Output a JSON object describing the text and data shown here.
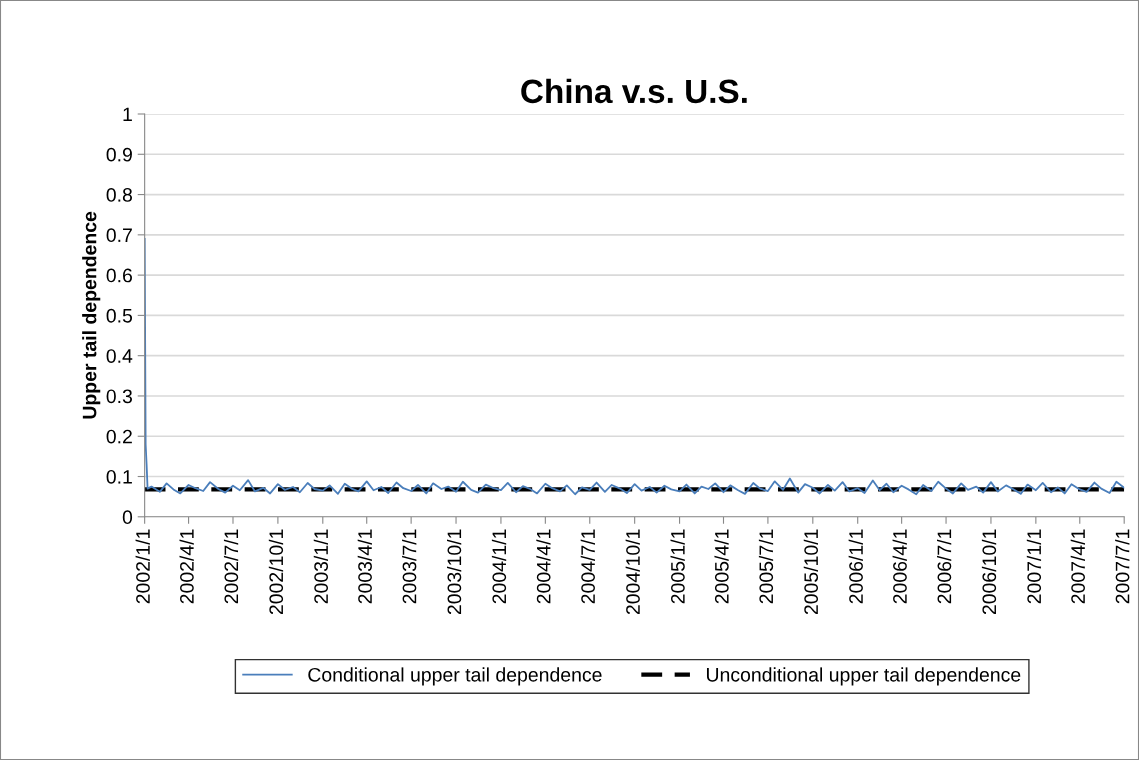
{
  "chart_data": {
    "type": "line",
    "title": "China v.s. U.S.",
    "ylabel": "Upper tail dependence",
    "series": [
      {
        "name": "Conditional upper tail dependence",
        "color": "#4a7ebb",
        "x": [
          "2002-01-01",
          "2002-01-03",
          "2002-01-05",
          "2002-01-07",
          "2002-01-15",
          "2002-02-01",
          "2002-02-15",
          "2002-03-01",
          "2002-03-15",
          "2002-04-01",
          "2002-04-15",
          "2002-05-01",
          "2002-05-15",
          "2002-06-01",
          "2002-06-15",
          "2002-07-01",
          "2002-07-15",
          "2002-08-01",
          "2002-08-15",
          "2002-09-01",
          "2002-09-15",
          "2002-10-01",
          "2002-10-15",
          "2002-11-01",
          "2002-11-15",
          "2002-12-01",
          "2002-12-15",
          "2003-01-01",
          "2003-01-15",
          "2003-02-01",
          "2003-02-15",
          "2003-03-01",
          "2003-03-15",
          "2003-04-01",
          "2003-04-15",
          "2003-05-01",
          "2003-05-15",
          "2003-06-01",
          "2003-06-15",
          "2003-07-01",
          "2003-07-15",
          "2003-08-01",
          "2003-08-15",
          "2003-09-01",
          "2003-09-15",
          "2003-10-01",
          "2003-10-15",
          "2003-11-01",
          "2003-11-15",
          "2003-12-01",
          "2003-12-15",
          "2004-01-01",
          "2004-01-15",
          "2004-02-01",
          "2004-02-15",
          "2004-03-01",
          "2004-03-15",
          "2004-04-01",
          "2004-04-15",
          "2004-05-01",
          "2004-05-15",
          "2004-06-01",
          "2004-06-15",
          "2004-07-01",
          "2004-07-15",
          "2004-08-01",
          "2004-08-15",
          "2004-09-01",
          "2004-09-15",
          "2004-10-01",
          "2004-10-15",
          "2004-11-01",
          "2004-11-15",
          "2004-12-01",
          "2004-12-15",
          "2005-01-01",
          "2005-01-15",
          "2005-02-01",
          "2005-02-15",
          "2005-03-01",
          "2005-03-15",
          "2005-04-01",
          "2005-04-15",
          "2005-05-01",
          "2005-05-15",
          "2005-06-01",
          "2005-06-15",
          "2005-07-01",
          "2005-07-15",
          "2005-08-01",
          "2005-08-15",
          "2005-09-01",
          "2005-09-15",
          "2005-10-01",
          "2005-10-15",
          "2005-11-01",
          "2005-11-15",
          "2005-12-01",
          "2005-12-15",
          "2006-01-01",
          "2006-01-15",
          "2006-02-01",
          "2006-02-15",
          "2006-03-01",
          "2006-03-15",
          "2006-04-01",
          "2006-04-15",
          "2006-05-01",
          "2006-05-15",
          "2006-06-01",
          "2006-06-15",
          "2006-07-01",
          "2006-07-15",
          "2006-08-01",
          "2006-08-15",
          "2006-09-01",
          "2006-09-15",
          "2006-10-01",
          "2006-10-15",
          "2006-11-01",
          "2006-11-15",
          "2006-12-01",
          "2006-12-15",
          "2007-01-01",
          "2007-01-15",
          "2007-02-01",
          "2007-02-15",
          "2007-03-01",
          "2007-03-15",
          "2007-04-01",
          "2007-04-15",
          "2007-05-01",
          "2007-05-15",
          "2007-06-01",
          "2007-06-15",
          "2007-07-01"
        ],
        "values": [
          0.69,
          0.18,
          0.13,
          0.07,
          0.075,
          0.062,
          0.083,
          0.068,
          0.058,
          0.079,
          0.071,
          0.064,
          0.086,
          0.069,
          0.06,
          0.077,
          0.066,
          0.091,
          0.063,
          0.072,
          0.058,
          0.081,
          0.067,
          0.074,
          0.061,
          0.084,
          0.069,
          0.065,
          0.078,
          0.057,
          0.082,
          0.07,
          0.063,
          0.088,
          0.066,
          0.074,
          0.059,
          0.085,
          0.071,
          0.064,
          0.079,
          0.058,
          0.083,
          0.069,
          0.075,
          0.062,
          0.087,
          0.067,
          0.06,
          0.08,
          0.072,
          0.066,
          0.084,
          0.061,
          0.076,
          0.069,
          0.058,
          0.082,
          0.071,
          0.063,
          0.078,
          0.056,
          0.073,
          0.067,
          0.085,
          0.062,
          0.079,
          0.07,
          0.059,
          0.081,
          0.065,
          0.074,
          0.06,
          0.077,
          0.068,
          0.063,
          0.08,
          0.058,
          0.075,
          0.069,
          0.083,
          0.061,
          0.078,
          0.066,
          0.057,
          0.084,
          0.07,
          0.064,
          0.088,
          0.067,
          0.095,
          0.06,
          0.081,
          0.072,
          0.058,
          0.079,
          0.065,
          0.086,
          0.063,
          0.071,
          0.059,
          0.09,
          0.066,
          0.082,
          0.061,
          0.077,
          0.068,
          0.056,
          0.079,
          0.064,
          0.087,
          0.07,
          0.058,
          0.083,
          0.067,
          0.075,
          0.06,
          0.086,
          0.063,
          0.078,
          0.069,
          0.057,
          0.08,
          0.066,
          0.084,
          0.061,
          0.073,
          0.058,
          0.081,
          0.068,
          0.062,
          0.085,
          0.07,
          0.059,
          0.087,
          0.072
        ]
      }
    ],
    "ref_lines": [
      {
        "axis": "y",
        "value": 0.068,
        "label": "Unconditional upper tail dependence",
        "color": "#000000",
        "line_style": "dashed"
      }
    ],
    "xlim": [
      "2002-01-01",
      "2007-07-01"
    ],
    "xticks": [
      {
        "value": "2002-01-01",
        "label": "2002/1/1"
      },
      {
        "value": "2002-04-01",
        "label": "2002/4/1"
      },
      {
        "value": "2002-07-01",
        "label": "2002/7/1"
      },
      {
        "value": "2002-10-01",
        "label": "2002/10/1"
      },
      {
        "value": "2003-01-01",
        "label": "2003/1/1"
      },
      {
        "value": "2003-04-01",
        "label": "2003/4/1"
      },
      {
        "value": "2003-07-01",
        "label": "2003/7/1"
      },
      {
        "value": "2003-10-01",
        "label": "2003/10/1"
      },
      {
        "value": "2004-01-01",
        "label": "2004/1/1"
      },
      {
        "value": "2004-04-01",
        "label": "2004/4/1"
      },
      {
        "value": "2004-07-01",
        "label": "2004/7/1"
      },
      {
        "value": "2004-10-01",
        "label": "2004/10/1"
      },
      {
        "value": "2005-01-01",
        "label": "2005/1/1"
      },
      {
        "value": "2005-04-01",
        "label": "2005/4/1"
      },
      {
        "value": "2005-07-01",
        "label": "2005/7/1"
      },
      {
        "value": "2005-10-01",
        "label": "2005/10/1"
      },
      {
        "value": "2006-01-01",
        "label": "2006/1/1"
      },
      {
        "value": "2006-04-01",
        "label": "2006/4/1"
      },
      {
        "value": "2006-07-01",
        "label": "2006/7/1"
      },
      {
        "value": "2006-10-01",
        "label": "2006/10/1"
      },
      {
        "value": "2007-01-01",
        "label": "2007/1/1"
      },
      {
        "value": "2007-04-01",
        "label": "2007/4/1"
      },
      {
        "value": "2007-07-01",
        "label": "2007/7/1"
      }
    ],
    "ylim": [
      0,
      1
    ],
    "yticks": [
      0,
      0.1,
      0.2,
      0.3,
      0.4,
      0.5,
      0.6,
      0.7,
      0.8,
      0.9,
      1
    ],
    "grid": "y",
    "legend": "bottom",
    "marker": "none",
    "line_style": "solid"
  }
}
